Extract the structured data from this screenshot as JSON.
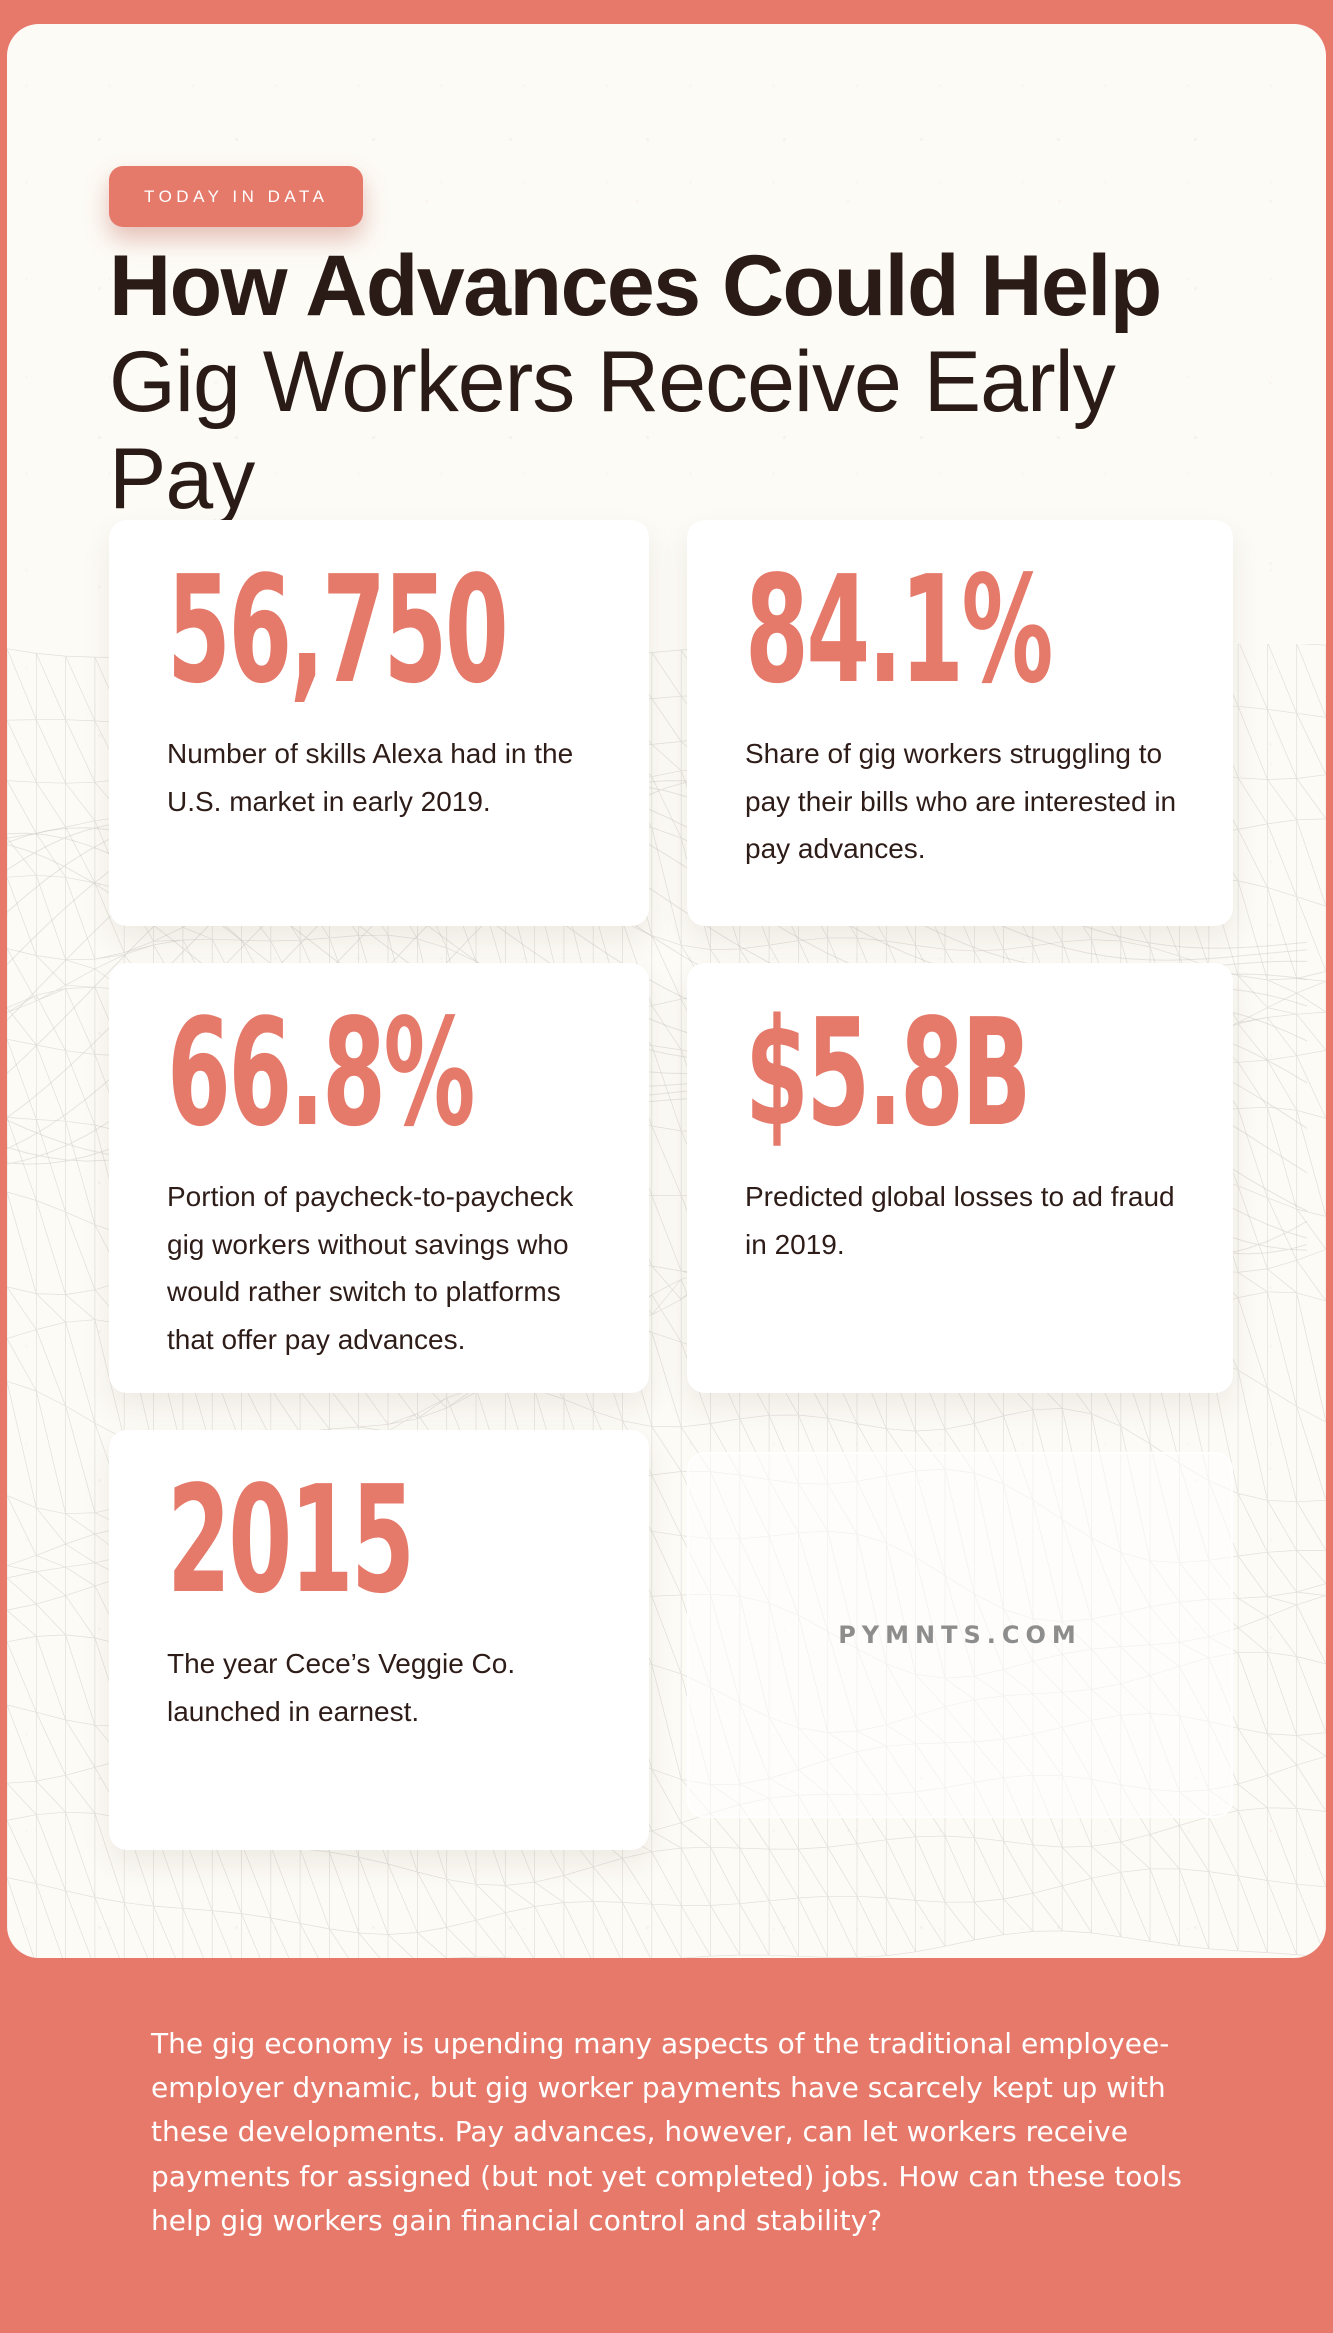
{
  "colors": {
    "accent": "#E5796A",
    "frame_background": "#E7796B",
    "panel_background": "#FDFBF6",
    "card_background": "#FFFFFF",
    "headline_text": "#2B1B17",
    "watermark_gray": "#8D8D8D",
    "footer_text": "#FFFFFF",
    "mesh_line": "#C9C5C2"
  },
  "badge": {
    "label": "TODAY IN DATA"
  },
  "title": {
    "bold": "How Advances Could Help",
    "light": "Gig Workers Receive Early Pay"
  },
  "cards": [
    {
      "value": "56,750",
      "description": "Number of skills Alexa had in the U.S. market in early 2019."
    },
    {
      "value": "84.1%",
      "description": "Share of gig workers struggling to pay their bills who are interested in pay advances."
    },
    {
      "value": "66.8%",
      "description": "Portion of paycheck-to-paycheck gig workers without savings who would rather switch to platforms that offer pay advances."
    },
    {
      "value": "$5.8B",
      "description": "Predicted global losses to ad fraud in 2019."
    },
    {
      "value": "2015",
      "description": "The year Cece’s Veggie Co. launched in earnest."
    }
  ],
  "watermark": {
    "label": "PYMNTS.COM"
  },
  "footer": {
    "paragraph": "The gig economy is upending many aspects of the traditional employee-employer dynamic, but gig worker payments have scarcely kept up with these developments. Pay advances, however, can let workers receive payments for assigned (but not yet completed) jobs. How can these tools help gig workers gain financial control and stability?"
  }
}
